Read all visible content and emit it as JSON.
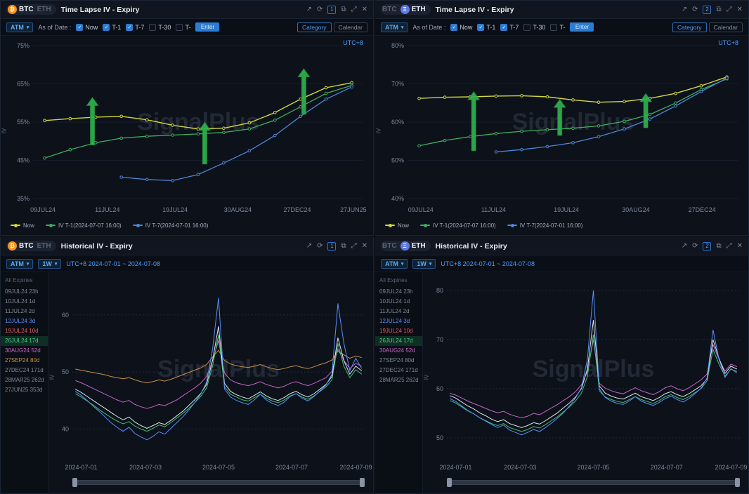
{
  "watermark": "SignalPlus",
  "colors": {
    "arrow": "#2fb14e"
  },
  "icons": {
    "external": "↗",
    "refresh": "⟳",
    "copy": "⧉",
    "expand": "⤢",
    "close": "✕",
    "caret": "▾",
    "check": "✓"
  },
  "tl": {
    "coin_btc": "BTC",
    "coin_eth": "ETH",
    "title": "Time Lapse IV - Expiry",
    "badge": "1",
    "atm": "ATM",
    "asof": "As of Date :",
    "checks": [
      {
        "label": "Now",
        "on": true
      },
      {
        "label": "T-1",
        "on": true
      },
      {
        "label": "T-7",
        "on": true
      },
      {
        "label": "T-30",
        "on": false
      },
      {
        "label": "T-",
        "on": false
      }
    ],
    "enter": "Enter",
    "category": "Category",
    "calendar": "Calendar",
    "utc": "UTC+8",
    "ylabel": "IV",
    "legend": [
      {
        "label": "Now",
        "color": "#d4d838"
      },
      {
        "label": "IV T-1(2024-07-07 16:00)",
        "color": "#3faf5f"
      },
      {
        "label": "IV T-7(2024-07-01 16:00)",
        "color": "#4f86d9"
      }
    ]
  },
  "tr": {
    "coin_btc": "BTC",
    "coin_eth": "ETH",
    "title": "Time Lapse IV - Expiry",
    "badge": "2",
    "atm": "ATM",
    "asof": "As of Date :",
    "checks": [
      {
        "label": "Now",
        "on": true
      },
      {
        "label": "T-1",
        "on": true
      },
      {
        "label": "T-7",
        "on": true
      },
      {
        "label": "T-30",
        "on": false
      },
      {
        "label": "T-",
        "on": false
      }
    ],
    "enter": "Enter",
    "category": "Category",
    "calendar": "Calendar",
    "utc": "UTC+8",
    "ylabel": "IV",
    "legend": [
      {
        "label": "Now",
        "color": "#d4d838"
      },
      {
        "label": "IV T-1(2024-07-07 16:00)",
        "color": "#3faf5f"
      },
      {
        "label": "IV T-7(2024-07-01 16:00)",
        "color": "#4f86d9"
      }
    ]
  },
  "bl": {
    "coin_btc": "BTC",
    "coin_eth": "ETH",
    "title": "Historical IV - Expiry",
    "badge": "1",
    "atm": "ATM",
    "tf": "1W",
    "range": "UTC+8 2024-07-01 ~ 2024-07-08",
    "expiries_label": "All Expiries",
    "ylabel": "IV",
    "expiries": [
      {
        "label": "09JUL24 23h",
        "color": "#7d8795"
      },
      {
        "label": "10JUL24 1d",
        "color": "#7d8795"
      },
      {
        "label": "11JUL24 2d",
        "color": "#7d8795"
      },
      {
        "label": "12JUL24 3d",
        "color": "#5b8ff9"
      },
      {
        "label": "19JUL24 10d",
        "color": "#e05c5c"
      },
      {
        "label": "26JUL24 17d",
        "color": "#49d17c",
        "selected": true
      },
      {
        "label": "30AUG24 52d",
        "color": "#c964c9"
      },
      {
        "label": "27SEP24 80d",
        "color": "#c98f46"
      },
      {
        "label": "27DEC24 171d",
        "color": "#7d8795"
      },
      {
        "label": "28MAR25 262d",
        "color": "#7d8795"
      },
      {
        "label": "27JUN25 353d",
        "color": "#7d8795"
      }
    ]
  },
  "br": {
    "coin_btc": "BTC",
    "coin_eth": "ETH",
    "title": "Historical IV - Expiry",
    "badge": "2",
    "atm": "ATM",
    "tf": "1W",
    "range": "UTC+8 2024-07-01 ~ 2024-07-08",
    "expiries_label": "All Expiries",
    "ylabel": "IV",
    "expiries": [
      {
        "label": "09JUL24 23h",
        "color": "#7d8795"
      },
      {
        "label": "10JUL24 1d",
        "color": "#7d8795"
      },
      {
        "label": "11JUL24 2d",
        "color": "#7d8795"
      },
      {
        "label": "12JUL24 3d",
        "color": "#5b8ff9"
      },
      {
        "label": "19JUL24 10d",
        "color": "#e05c5c"
      },
      {
        "label": "26JUL24 17d",
        "color": "#49d17c",
        "selected": true
      },
      {
        "label": "30AUG24 52d",
        "color": "#c964c9"
      },
      {
        "label": "27SEP24 80d",
        "color": "#7d8795"
      },
      {
        "label": "27DEC24 171d",
        "color": "#7d8795"
      },
      {
        "label": "28MAR25 262d",
        "color": "#7d8795"
      }
    ]
  },
  "chart_data": {
    "chart_tl": {
      "type": "line",
      "title": "BTC Time Lapse IV - Expiry",
      "m": {
        "l": 46,
        "r": 14,
        "t": 14,
        "b": 26
      },
      "xpad": 0.035,
      "ylim": [
        35,
        75
      ],
      "yticks": [
        35,
        45,
        55,
        65,
        75
      ],
      "ysuffix": "%",
      "dotted": false,
      "xticks": [
        {
          "pos": 0.03,
          "label": "09JUL24"
        },
        {
          "pos": 0.225,
          "label": "11JUL24"
        },
        {
          "pos": 0.43,
          "label": "19JUL24"
        },
        {
          "pos": 0.62,
          "label": "30AUG24"
        },
        {
          "pos": 0.8,
          "label": "27DEC24"
        },
        {
          "pos": 0.97,
          "label": "27JUN25"
        }
      ],
      "series": [
        {
          "name": "Now",
          "color": "#d4d838",
          "w": 1.4,
          "marker": true,
          "values": [
            55.4,
            55.9,
            56.3,
            56.5,
            55.6,
            54.2,
            53.2,
            53.4,
            54.8,
            57.5,
            61.0,
            64.0,
            65.3
          ]
        },
        {
          "name": "IV T-1(2024-07-07 16:00)",
          "color": "#3faf5f",
          "w": 1.3,
          "marker": true,
          "values": [
            45.6,
            47.8,
            49.6,
            50.8,
            51.3,
            51.6,
            51.9,
            52.3,
            53.2,
            55.5,
            59.0,
            62.5,
            64.6
          ]
        },
        {
          "name": "IV T-7(2024-07-01 16:00)",
          "color": "#4f86d9",
          "w": 1.3,
          "marker": true,
          "values": [
            null,
            null,
            null,
            40.6,
            40.0,
            39.7,
            41.3,
            44.3,
            47.5,
            51.5,
            56.5,
            61.0,
            64.2
          ]
        }
      ],
      "arrows": [
        {
          "x": 0.18,
          "base": 49.0,
          "tip": 61.5
        },
        {
          "x": 0.52,
          "base": 44.0,
          "tip": 55.0
        },
        {
          "x": 0.82,
          "base": 57.0,
          "tip": 69.0
        }
      ]
    },
    "chart_tr": {
      "type": "line",
      "title": "ETH Time Lapse IV - Expiry",
      "m": {
        "l": 46,
        "r": 14,
        "t": 14,
        "b": 26
      },
      "xpad": 0.035,
      "ylim": [
        40,
        80
      ],
      "yticks": [
        40,
        50,
        60,
        70,
        80
      ],
      "ysuffix": "%",
      "dotted": false,
      "xticks": [
        {
          "pos": 0.04,
          "label": "09JUL24"
        },
        {
          "pos": 0.26,
          "label": "11JUL24"
        },
        {
          "pos": 0.48,
          "label": "19JUL24"
        },
        {
          "pos": 0.69,
          "label": "30AUG24"
        },
        {
          "pos": 0.89,
          "label": "27DEC24"
        }
      ],
      "series": [
        {
          "name": "Now",
          "color": "#d4d838",
          "w": 1.4,
          "marker": true,
          "values": [
            66.2,
            66.5,
            66.6,
            66.8,
            66.9,
            66.6,
            65.8,
            65.2,
            65.4,
            66.2,
            67.5,
            69.5,
            71.8
          ]
        },
        {
          "name": "IV T-1(2024-07-07 16:00)",
          "color": "#3faf5f",
          "w": 1.3,
          "marker": true,
          "values": [
            53.8,
            55.2,
            56.2,
            57.0,
            57.6,
            58.0,
            58.4,
            59.0,
            60.2,
            62.0,
            65.0,
            68.5,
            71.3
          ]
        },
        {
          "name": "IV T-7(2024-07-01 16:00)",
          "color": "#4f86d9",
          "w": 1.3,
          "marker": true,
          "values": [
            null,
            null,
            null,
            52.2,
            52.8,
            53.6,
            54.6,
            56.2,
            58.2,
            60.8,
            64.2,
            68.0,
            71.5
          ]
        }
      ],
      "arrows": [
        {
          "x": 0.2,
          "base": 52.5,
          "tip": 68.0
        },
        {
          "x": 0.46,
          "base": 56.5,
          "tip": 66.0
        },
        {
          "x": 0.72,
          "base": 58.5,
          "tip": 67.5
        }
      ]
    },
    "chart_bl": {
      "type": "line",
      "title": "BTC Historical IV - Expiry",
      "m": {
        "l": 34,
        "r": 12,
        "t": 12,
        "b": 24
      },
      "xpad": 0.01,
      "ylim": [
        35,
        66
      ],
      "yticks": [
        40,
        50,
        60
      ],
      "ysuffix": "",
      "dotted": true,
      "xticks": [
        {
          "pos": 0.03,
          "label": "2024-07-01"
        },
        {
          "pos": 0.25,
          "label": "2024-07-03"
        },
        {
          "pos": 0.5,
          "label": "2024-07-05"
        },
        {
          "pos": 0.75,
          "label": "2024-07-07"
        },
        {
          "pos": 0.97,
          "label": "2024-07-09"
        }
      ],
      "series": [
        {
          "name": "27SEP24 80d",
          "color": "#c98f46",
          "w": 1,
          "values": [
            50.5,
            50.3,
            50.1,
            49.9,
            49.7,
            49.5,
            49.2,
            49.0,
            48.8,
            49.0,
            48.6,
            48.3,
            48.1,
            48.3,
            48.6,
            48.4,
            48.7,
            49.1,
            49.5,
            49.9,
            50.3,
            50.7,
            51.3,
            52.6,
            53.8,
            52.0,
            51.4,
            51.1,
            50.9,
            50.8,
            51.0,
            51.3,
            50.9,
            50.6,
            50.4,
            50.6,
            50.9,
            51.1,
            50.8,
            50.6,
            50.9,
            51.3,
            51.6,
            52.1,
            53.6,
            53.0,
            52.4,
            52.8,
            52.5
          ]
        },
        {
          "name": "30AUG24 52d",
          "color": "#c964c9",
          "w": 1,
          "values": [
            48.5,
            48.1,
            47.6,
            47.1,
            46.6,
            46.1,
            45.6,
            45.1,
            44.7,
            45.0,
            44.3,
            43.9,
            43.6,
            43.9,
            44.3,
            44.1,
            44.6,
            45.1,
            45.8,
            46.5,
            47.2,
            48.0,
            49.2,
            52.0,
            55.5,
            49.8,
            48.6,
            48.1,
            47.8,
            47.6,
            47.9,
            48.3,
            47.8,
            47.5,
            47.2,
            47.5,
            48.0,
            48.3,
            47.9,
            47.6,
            48.0,
            48.5,
            49.0,
            50.1,
            54.0,
            52.0,
            50.6,
            51.5,
            51.0
          ]
        },
        {
          "name": "26JUL24 17d",
          "color": "#3fbf74",
          "w": 1,
          "values": [
            46.2,
            45.6,
            44.9,
            44.2,
            43.4,
            42.7,
            42.0,
            41.4,
            40.9,
            41.3,
            40.5,
            40.0,
            39.6,
            40.1,
            40.7,
            40.4,
            41.1,
            41.9,
            42.7,
            43.6,
            44.6,
            45.7,
            47.2,
            51.0,
            56.5,
            47.4,
            46.1,
            45.6,
            45.1,
            44.9,
            45.5,
            46.1,
            45.4,
            44.9,
            44.6,
            45.1,
            45.8,
            46.2,
            45.6,
            45.2,
            45.8,
            46.6,
            47.4,
            48.6,
            55.0,
            51.0,
            49.0,
            50.4,
            49.6
          ]
        },
        {
          "name": "19JUL24 10d",
          "color": "#dfe5ec",
          "w": 1,
          "values": [
            47.0,
            46.4,
            45.7,
            45.0,
            44.3,
            43.6,
            42.9,
            42.2,
            41.6,
            42.1,
            41.2,
            40.6,
            40.1,
            40.6,
            41.1,
            40.8,
            41.5,
            42.3,
            43.1,
            44.1,
            45.1,
            46.2,
            47.8,
            52.0,
            58.0,
            48.0,
            46.6,
            46.0,
            45.6,
            45.3,
            45.9,
            46.5,
            45.8,
            45.3,
            45.0,
            45.5,
            46.2,
            46.6,
            46.0,
            45.6,
            46.2,
            47.0,
            47.8,
            49.2,
            56.0,
            52.0,
            49.6,
            51.0,
            50.2
          ]
        },
        {
          "name": "12JUL24 3d",
          "color": "#5b8ff9",
          "w": 1,
          "values": [
            46.6,
            45.9,
            45.0,
            44.0,
            43.1,
            42.1,
            41.1,
            40.3,
            39.6,
            40.3,
            39.2,
            38.6,
            38.1,
            38.7,
            39.5,
            39.1,
            40.1,
            41.1,
            42.1,
            43.3,
            44.6,
            46.1,
            48.2,
            54.0,
            63.0,
            47.0,
            45.6,
            45.0,
            44.6,
            44.3,
            45.1,
            46.1,
            45.1,
            44.5,
            44.1,
            44.7,
            45.7,
            46.2,
            45.4,
            44.9,
            45.7,
            46.7,
            47.7,
            49.6,
            62.0,
            55.0,
            50.2,
            52.4,
            50.6
          ]
        }
      ],
      "arrows": []
    },
    "chart_br": {
      "type": "line",
      "title": "ETH Historical IV - Expiry",
      "m": {
        "l": 34,
        "r": 12,
        "t": 12,
        "b": 24
      },
      "xpad": 0.01,
      "ylim": [
        46,
        82
      ],
      "yticks": [
        50,
        60,
        70,
        80
      ],
      "ysuffix": "",
      "dotted": true,
      "xticks": [
        {
          "pos": 0.03,
          "label": "2024-07-01"
        },
        {
          "pos": 0.25,
          "label": "2024-07-03"
        },
        {
          "pos": 0.5,
          "label": "2024-07-05"
        },
        {
          "pos": 0.75,
          "label": "2024-07-07"
        },
        {
          "pos": 0.97,
          "label": "2024-07-09"
        }
      ],
      "series": [
        {
          "name": "30AUG24 52d",
          "color": "#c964c9",
          "w": 1,
          "values": [
            59.1,
            58.7,
            58.1,
            57.5,
            57.0,
            56.5,
            56.0,
            55.5,
            55.1,
            55.4,
            54.8,
            54.4,
            54.1,
            54.4,
            55.0,
            54.7,
            55.4,
            56.1,
            56.8,
            57.6,
            58.4,
            59.4,
            60.8,
            63.5,
            70.0,
            61.1,
            60.1,
            59.6,
            59.2,
            59.0,
            59.6,
            60.2,
            59.6,
            59.2,
            58.8,
            59.4,
            60.2,
            60.6,
            60.0,
            59.6,
            60.2,
            61.0,
            61.8,
            63.0,
            69.0,
            66.0,
            63.6,
            65.0,
            64.5
          ]
        },
        {
          "name": "26JUL24 17d",
          "color": "#3fbf74",
          "w": 1,
          "values": [
            57.6,
            57.1,
            56.3,
            55.5,
            54.9,
            54.1,
            53.5,
            52.9,
            52.5,
            52.9,
            52.1,
            51.7,
            51.3,
            51.7,
            52.3,
            52.0,
            52.7,
            53.5,
            54.3,
            55.3,
            56.3,
            57.5,
            59.1,
            62.5,
            71.0,
            59.6,
            58.3,
            57.8,
            57.4,
            57.2,
            57.8,
            58.4,
            57.8,
            57.4,
            57.0,
            57.6,
            58.4,
            58.8,
            58.2,
            57.8,
            58.4,
            59.2,
            60.0,
            61.6,
            68.0,
            65.0,
            62.6,
            64.0,
            63.5
          ]
        },
        {
          "name": "19JUL24 10d",
          "color": "#dfe5ec",
          "w": 1,
          "values": [
            58.6,
            58.1,
            57.3,
            56.5,
            55.9,
            55.1,
            54.5,
            53.8,
            53.3,
            53.7,
            52.9,
            52.5,
            52.1,
            52.5,
            53.1,
            52.8,
            53.5,
            54.3,
            55.1,
            56.1,
            57.1,
            58.3,
            60.0,
            64.0,
            74.0,
            60.6,
            59.1,
            58.5,
            58.1,
            57.9,
            58.5,
            59.1,
            58.4,
            58.0,
            57.6,
            58.2,
            59.0,
            59.4,
            58.8,
            58.4,
            59.0,
            59.8,
            60.6,
            62.0,
            70.0,
            66.2,
            63.1,
            64.6,
            64.0
          ]
        },
        {
          "name": "12JUL24 3d",
          "color": "#5b8ff9",
          "w": 1,
          "values": [
            58.0,
            57.4,
            56.5,
            55.6,
            54.9,
            54.1,
            53.4,
            52.7,
            52.1,
            52.6,
            51.6,
            51.1,
            50.6,
            51.1,
            51.7,
            51.3,
            52.1,
            53.0,
            54.0,
            55.1,
            56.5,
            58.1,
            60.2,
            66.0,
            80.0,
            60.0,
            58.2,
            57.5,
            57.0,
            56.8,
            57.5,
            58.4,
            57.5,
            57.0,
            56.6,
            57.2,
            58.0,
            58.5,
            57.8,
            57.3,
            58.0,
            59.0,
            60.1,
            62.2,
            72.0,
            66.0,
            62.3,
            64.1,
            63.2
          ]
        }
      ],
      "arrows": []
    }
  }
}
